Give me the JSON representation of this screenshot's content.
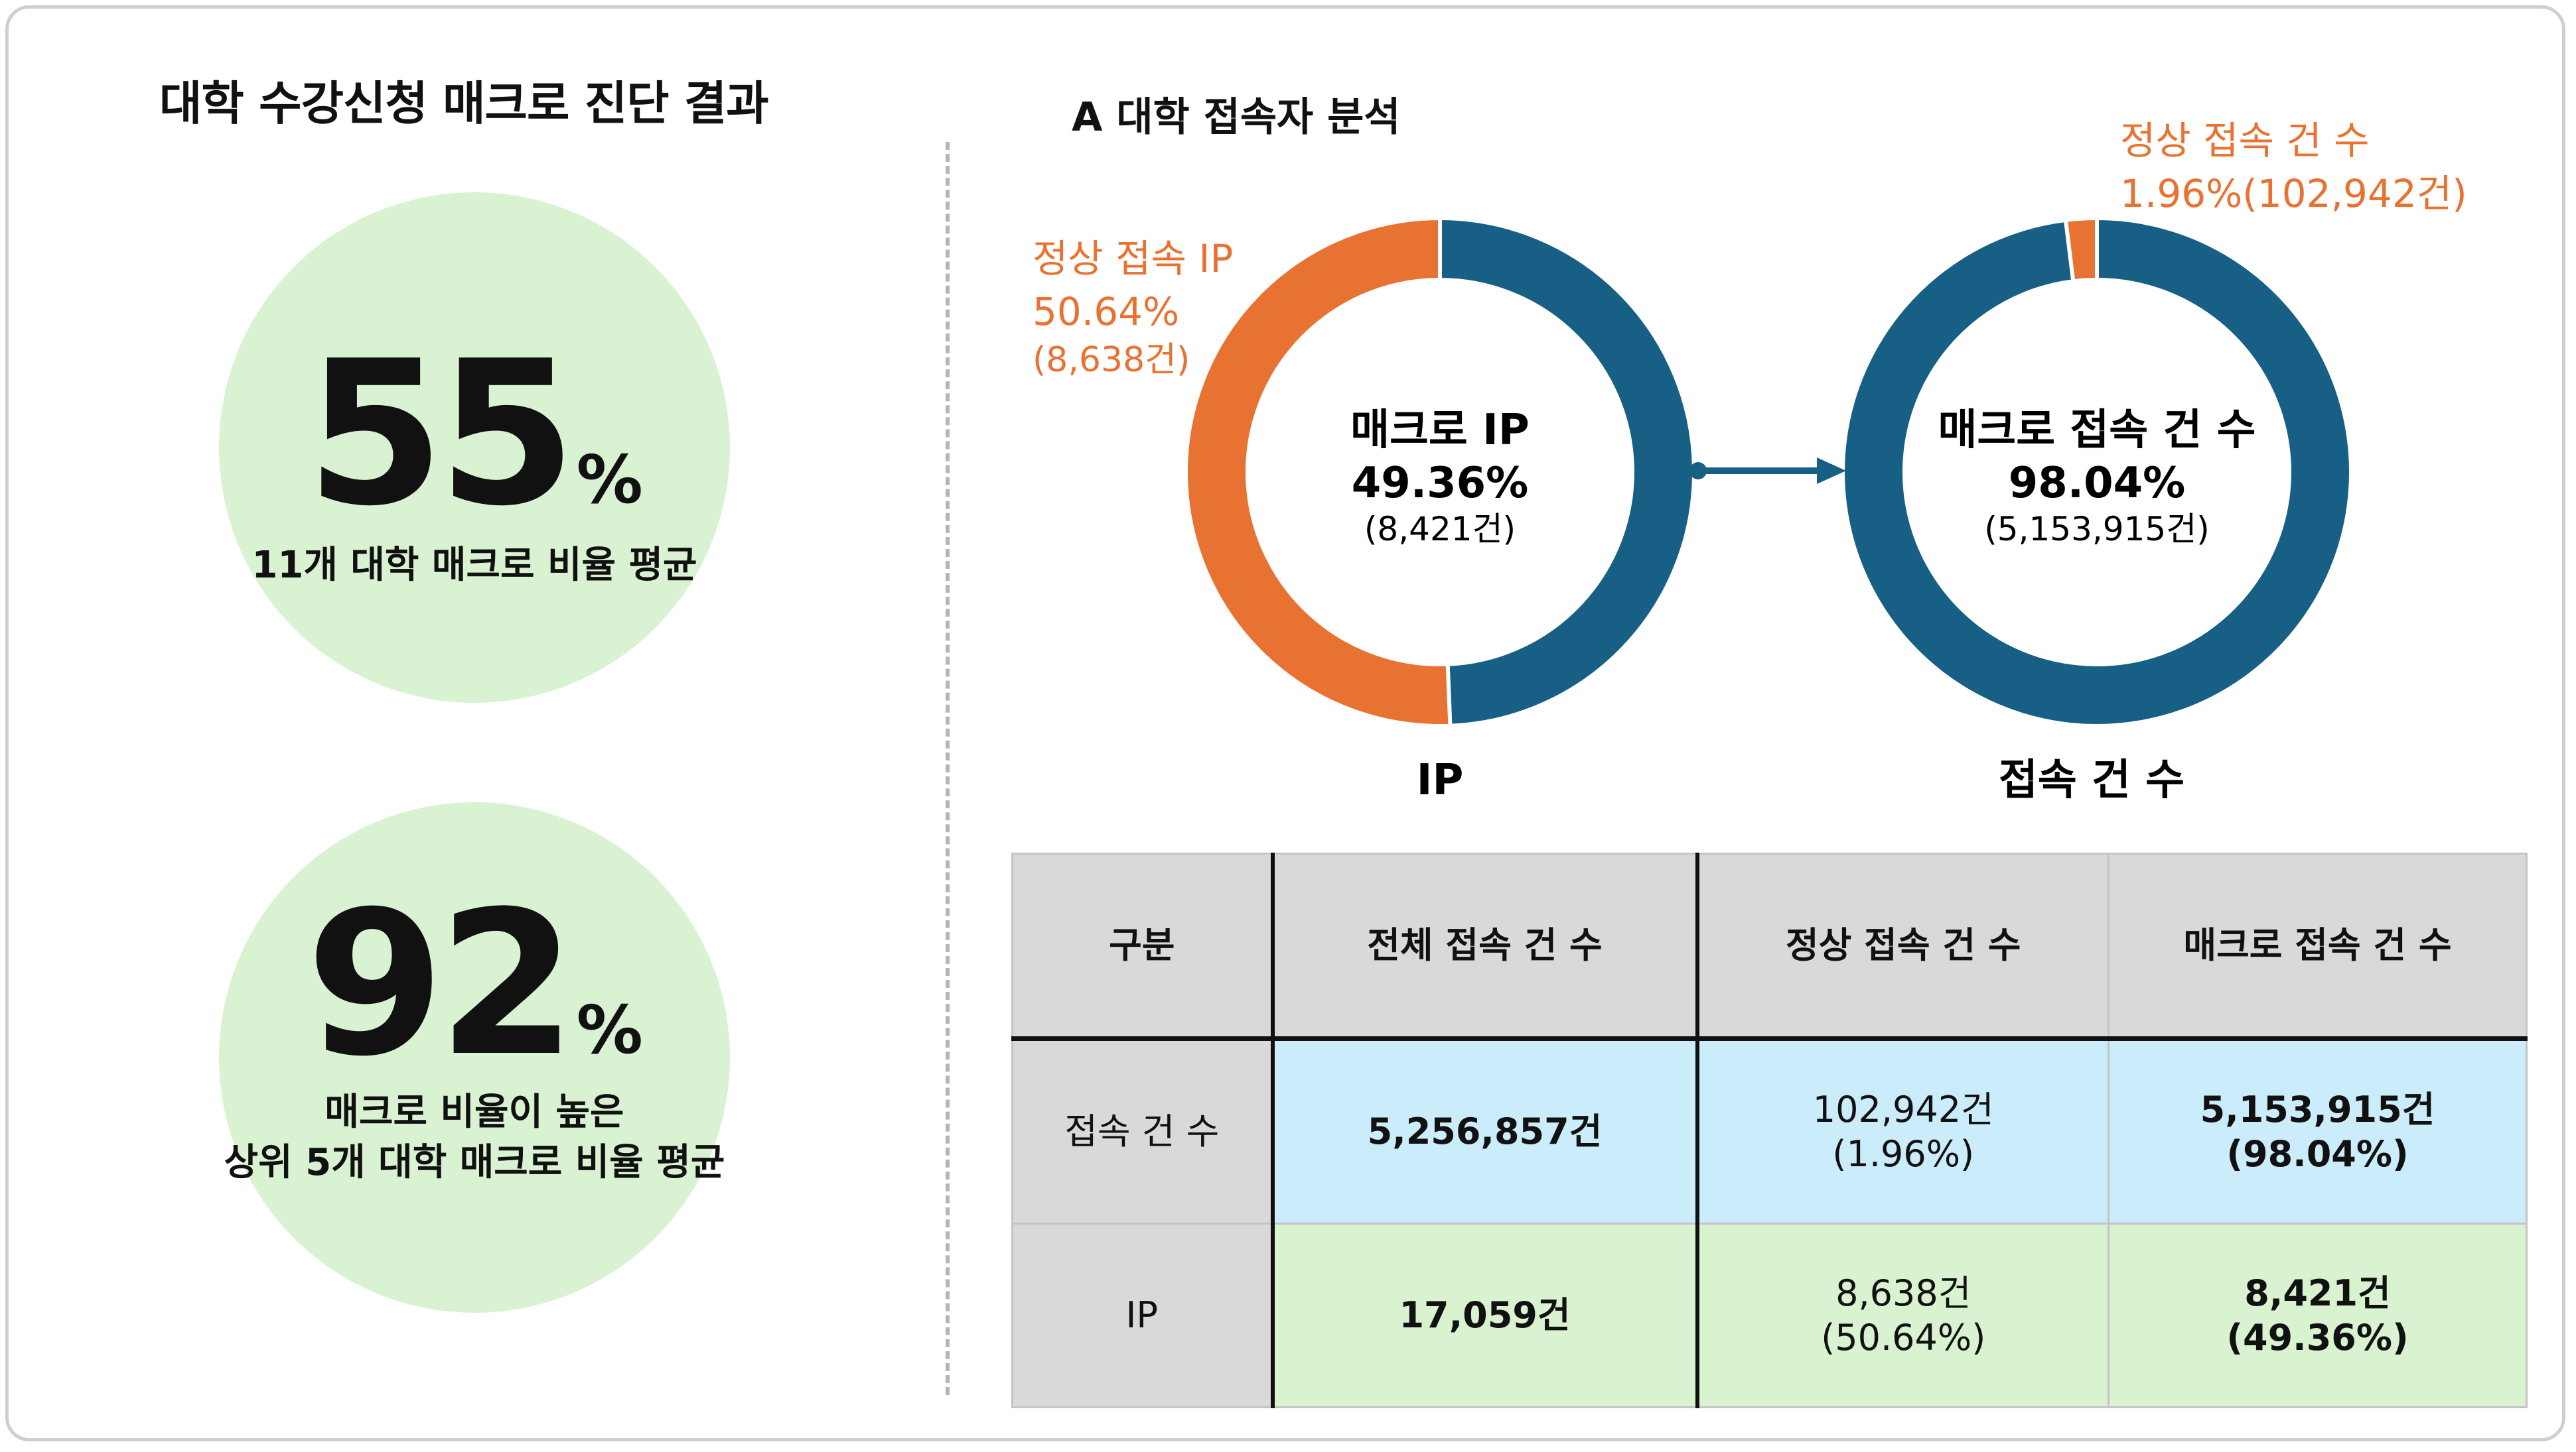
{
  "left": {
    "title": "대학 수강신청 매크로 진단 결과",
    "stat1": {
      "value": "55",
      "unit": "%",
      "caption": "11개 대학 매크로 비율 평균"
    },
    "stat2": {
      "value": "92",
      "unit": "%",
      "caption_line1": "매크로 비율이 높은",
      "caption_line2": "상위 5개 대학 매크로 비율 평균"
    }
  },
  "right": {
    "title": "A 대학 접속자 분석"
  },
  "colors": {
    "macro": "#175f85",
    "normal": "#e87232",
    "green": "#d8f2d2",
    "blue": "#cbecfb"
  },
  "chart_data": [
    {
      "type": "pie",
      "title": "IP",
      "center_label": "매크로 IP",
      "center_value": "49.36%",
      "center_count": "(8,421건)",
      "outer_label_line1": "정상 접속 IP",
      "outer_label_line2": "50.64%",
      "outer_label_line3": "(8,638건)",
      "slices": [
        {
          "name": "매크로 IP",
          "value": 49.36,
          "count": 8421
        },
        {
          "name": "정상 접속 IP",
          "value": 50.64,
          "count": 8638
        }
      ]
    },
    {
      "type": "pie",
      "title": "접속 건 수",
      "center_label": "매크로 접속 건 수",
      "center_value": "98.04%",
      "center_count": "(5,153,915건)",
      "outer_label_line1": "정상 접속 건 수",
      "outer_label_line2": "1.96%(102,942건)",
      "slices": [
        {
          "name": "매크로 접속 건 수",
          "value": 98.04,
          "count": 5153915
        },
        {
          "name": "정상 접속 건 수",
          "value": 1.96,
          "count": 102942
        }
      ]
    },
    {
      "type": "table",
      "headers": [
        "구분",
        "전체 접속 건 수",
        "정상 접속 건 수",
        "매크로 접속 건 수"
      ],
      "rows": [
        {
          "label": "접속 건 수",
          "total": "5,256,857건",
          "normal_count": "102,942건",
          "normal_pct": "(1.96%)",
          "macro_count": "5,153,915건",
          "macro_pct": "(98.04%)"
        },
        {
          "label": "IP",
          "total": "17,059건",
          "normal_count": "8,638건",
          "normal_pct": "(50.64%)",
          "macro_count": "8,421건",
          "macro_pct": "(49.36%)"
        }
      ]
    }
  ]
}
